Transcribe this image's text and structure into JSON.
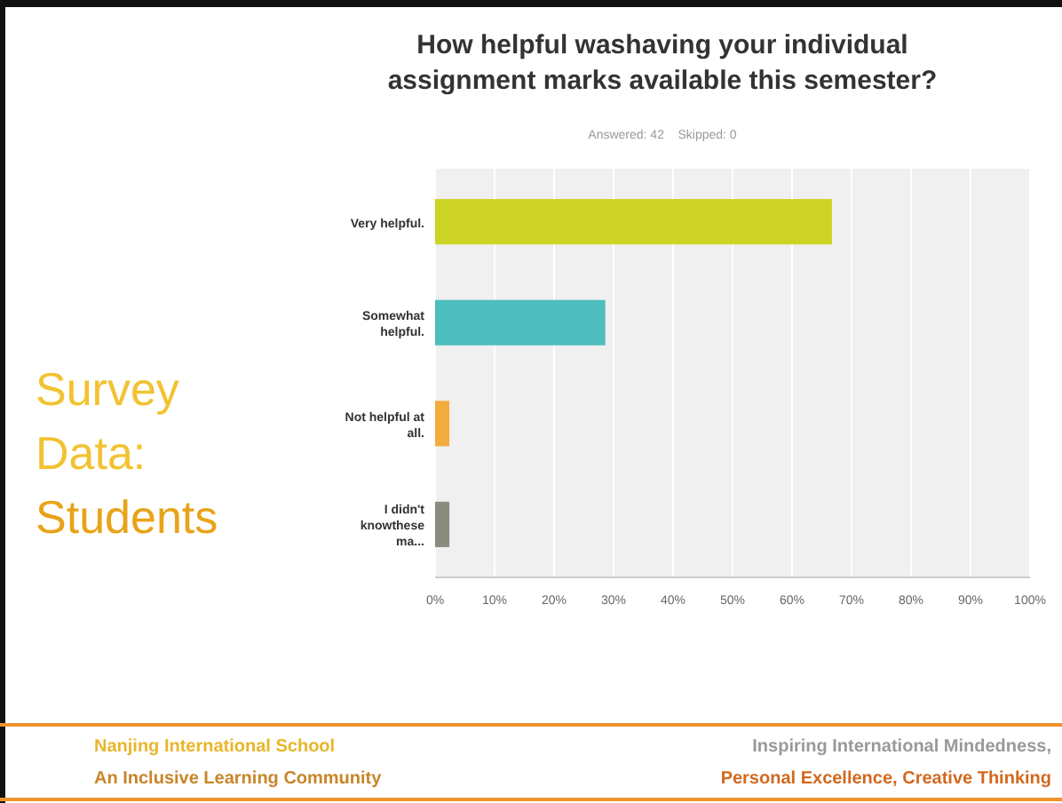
{
  "chart_data": {
    "type": "bar",
    "orientation": "horizontal",
    "title": "How helpful washaving your individual assignment marks available this semester?",
    "subtitle": "Answered: 42    Skipped: 0",
    "categories": [
      "Very helpful.",
      "Somewhat helpful.",
      "Not helpful at all.",
      "I didn't knowthese ma..."
    ],
    "values": [
      66.7,
      28.6,
      2.4,
      2.4
    ],
    "colors": [
      "#cdd426",
      "#4dbdbd",
      "#f2ac3c",
      "#8c8c7e"
    ],
    "xlim": [
      0,
      100
    ],
    "xticks": [
      {
        "value": 0,
        "label": "0%"
      },
      {
        "value": 10,
        "label": "10%"
      },
      {
        "value": 20,
        "label": "20%"
      },
      {
        "value": 30,
        "label": "30%"
      },
      {
        "value": 40,
        "label": "40%"
      },
      {
        "value": 50,
        "label": "50%"
      },
      {
        "value": 60,
        "label": "60%"
      },
      {
        "value": 70,
        "label": "70%"
      },
      {
        "value": 80,
        "label": "80%"
      },
      {
        "value": 90,
        "label": "90%"
      },
      {
        "value": 100,
        "label": "100%"
      }
    ],
    "grid": "x",
    "annotations": [
      "Survey Data: Students",
      "Nanjing International School",
      "An Inclusive Learning Community",
      "Inspiring International Mindedness,",
      "Personal Excellence, Creative Thinking"
    ]
  }
}
